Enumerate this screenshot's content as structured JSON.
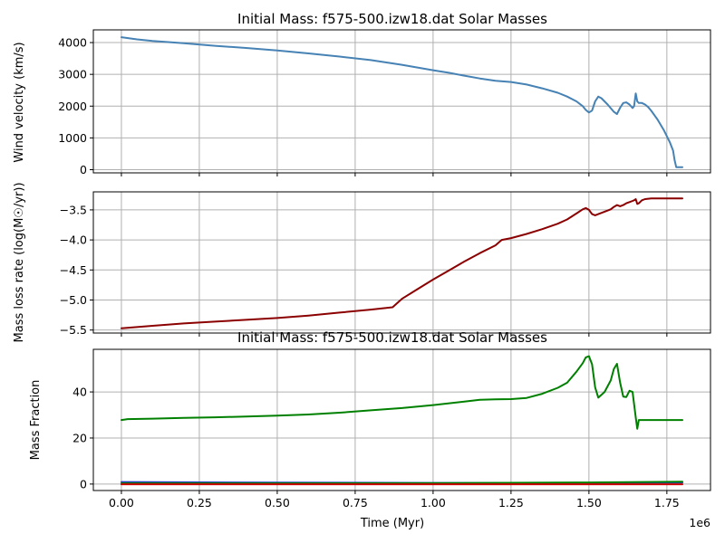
{
  "chart_data": [
    {
      "type": "line",
      "title": "Initial Mass: f575-500.izw18.dat Solar Masses",
      "ylabel": "Wind velocity (km/s)",
      "xlim": [
        -0.09,
        1.89
      ],
      "ylim": [
        -100,
        4400
      ],
      "x_ticks": [
        0.0,
        0.25,
        0.5,
        0.75,
        1.0,
        1.25,
        1.5,
        1.75
      ],
      "x_tick_labels": [
        "",
        "",
        "",
        "",
        "",
        "",
        "",
        ""
      ],
      "y_ticks": [
        0,
        1000,
        2000,
        3000,
        4000
      ],
      "y_tick_labels": [
        "0",
        "1000",
        "2000",
        "3000",
        "4000"
      ],
      "grid": true,
      "series": [
        {
          "color": "#4682b4",
          "x": [
            0.0,
            0.05,
            0.1,
            0.2,
            0.3,
            0.4,
            0.5,
            0.6,
            0.7,
            0.8,
            0.9,
            1.0,
            1.05,
            1.1,
            1.15,
            1.2,
            1.25,
            1.3,
            1.35,
            1.4,
            1.43,
            1.46,
            1.48,
            1.49,
            1.5,
            1.51,
            1.52,
            1.53,
            1.54,
            1.56,
            1.58,
            1.59,
            1.6,
            1.61,
            1.62,
            1.63,
            1.64,
            1.645,
            1.65,
            1.655,
            1.66,
            1.67,
            1.68,
            1.69,
            1.7,
            1.72,
            1.74,
            1.76,
            1.77,
            1.775,
            1.78,
            1.785,
            1.79,
            1.8
          ],
          "values": [
            4170,
            4100,
            4050,
            3980,
            3900,
            3830,
            3750,
            3660,
            3560,
            3450,
            3300,
            3130,
            3050,
            2960,
            2870,
            2800,
            2760,
            2680,
            2560,
            2420,
            2300,
            2150,
            2000,
            1880,
            1800,
            1860,
            2150,
            2300,
            2250,
            2050,
            1820,
            1750,
            1950,
            2100,
            2120,
            2050,
            1940,
            2000,
            2400,
            2150,
            2100,
            2100,
            2050,
            1970,
            1850,
            1580,
            1250,
            850,
            600,
            300,
            80,
            80,
            80,
            80
          ]
        }
      ]
    },
    {
      "type": "line",
      "ylabel": "Mass loss rate (log(M☉/yr))",
      "xlim": [
        -0.09,
        1.89
      ],
      "ylim": [
        -5.55,
        -3.2
      ],
      "x_ticks": [
        0.0,
        0.25,
        0.5,
        0.75,
        1.0,
        1.25,
        1.5,
        1.75
      ],
      "x_tick_labels": [
        "",
        "",
        "",
        "",
        "",
        "",
        "",
        ""
      ],
      "y_ticks": [
        -5.5,
        -5.0,
        -4.5,
        -4.0,
        -3.5
      ],
      "y_tick_labels": [
        "−5.5",
        "−5.0",
        "−4.5",
        "−4.0",
        "−3.5"
      ],
      "grid": true,
      "series": [
        {
          "color": "#8b0000",
          "x": [
            0.0,
            0.1,
            0.2,
            0.3,
            0.4,
            0.5,
            0.6,
            0.7,
            0.8,
            0.87,
            0.9,
            0.95,
            1.0,
            1.05,
            1.1,
            1.15,
            1.2,
            1.22,
            1.25,
            1.3,
            1.35,
            1.4,
            1.43,
            1.46,
            1.48,
            1.49,
            1.5,
            1.51,
            1.52,
            1.53,
            1.55,
            1.57,
            1.58,
            1.59,
            1.6,
            1.61,
            1.62,
            1.63,
            1.64,
            1.645,
            1.65,
            1.655,
            1.66,
            1.67,
            1.68,
            1.7,
            1.75,
            1.8
          ],
          "values": [
            -5.47,
            -5.43,
            -5.39,
            -5.36,
            -5.33,
            -5.3,
            -5.26,
            -5.21,
            -5.16,
            -5.12,
            -4.98,
            -4.82,
            -4.66,
            -4.51,
            -4.36,
            -4.22,
            -4.09,
            -4.0,
            -3.97,
            -3.9,
            -3.82,
            -3.73,
            -3.66,
            -3.56,
            -3.49,
            -3.47,
            -3.5,
            -3.57,
            -3.59,
            -3.57,
            -3.53,
            -3.49,
            -3.45,
            -3.42,
            -3.44,
            -3.42,
            -3.39,
            -3.37,
            -3.35,
            -3.34,
            -3.32,
            -3.4,
            -3.39,
            -3.34,
            -3.32,
            -3.31,
            -3.31,
            -3.31
          ]
        }
      ]
    },
    {
      "type": "line",
      "title": "Initial Mass: f575-500.izw18.dat Solar Masses",
      "ylabel": "Mass Fraction",
      "xlabel": "Time (Myr)",
      "x_offset_text": "1e6",
      "xlim": [
        -0.09,
        1.89
      ],
      "ylim": [
        -2.8,
        58.5
      ],
      "x_ticks": [
        0.0,
        0.25,
        0.5,
        0.75,
        1.0,
        1.25,
        1.5,
        1.75
      ],
      "x_tick_labels": [
        "0.00",
        "0.25",
        "0.50",
        "0.75",
        "1.00",
        "1.25",
        "1.50",
        "1.75"
      ],
      "y_ticks": [
        0,
        20,
        40
      ],
      "y_tick_labels": [
        "0",
        "20",
        "40"
      ],
      "grid": true,
      "series": [
        {
          "color": "#008000",
          "x": [
            0.0,
            0.02,
            0.1,
            0.2,
            0.3,
            0.4,
            0.5,
            0.6,
            0.7,
            0.8,
            0.9,
            1.0,
            1.1,
            1.15,
            1.2,
            1.25,
            1.3,
            1.35,
            1.4,
            1.43,
            1.46,
            1.48,
            1.49,
            1.5,
            1.51,
            1.52,
            1.53,
            1.55,
            1.57,
            1.58,
            1.59,
            1.6,
            1.61,
            1.62,
            1.63,
            1.64,
            1.65,
            1.655,
            1.66,
            1.7,
            1.75,
            1.8
          ],
          "values": [
            27.8,
            28.2,
            28.4,
            28.7,
            29.0,
            29.3,
            29.7,
            30.2,
            31.0,
            32.0,
            33.0,
            34.3,
            35.8,
            36.6,
            36.8,
            36.9,
            37.4,
            39.2,
            41.8,
            44.0,
            48.8,
            52.5,
            55.0,
            55.5,
            52.0,
            42.0,
            37.5,
            40.0,
            45.0,
            50.0,
            52.2,
            44.0,
            38.0,
            37.8,
            40.5,
            40.0,
            29.0,
            24.0,
            27.8,
            27.8,
            27.8,
            27.8
          ]
        },
        {
          "color": "#1f3fbf",
          "x": [
            0.0,
            0.5,
            1.0,
            1.5,
            1.8
          ],
          "values": [
            0.9,
            0.6,
            0.5,
            0.5,
            0.6
          ]
        },
        {
          "color": "#008000",
          "x": [
            0.0,
            0.5,
            1.0,
            1.5,
            1.8
          ],
          "values": [
            0.3,
            0.3,
            0.4,
            0.7,
            1.0
          ]
        },
        {
          "color": "#cc0000",
          "x": [
            0.0,
            0.5,
            1.0,
            1.5,
            1.8
          ],
          "values": [
            -0.1,
            -0.1,
            -0.1,
            -0.1,
            -0.1
          ]
        }
      ]
    }
  ]
}
